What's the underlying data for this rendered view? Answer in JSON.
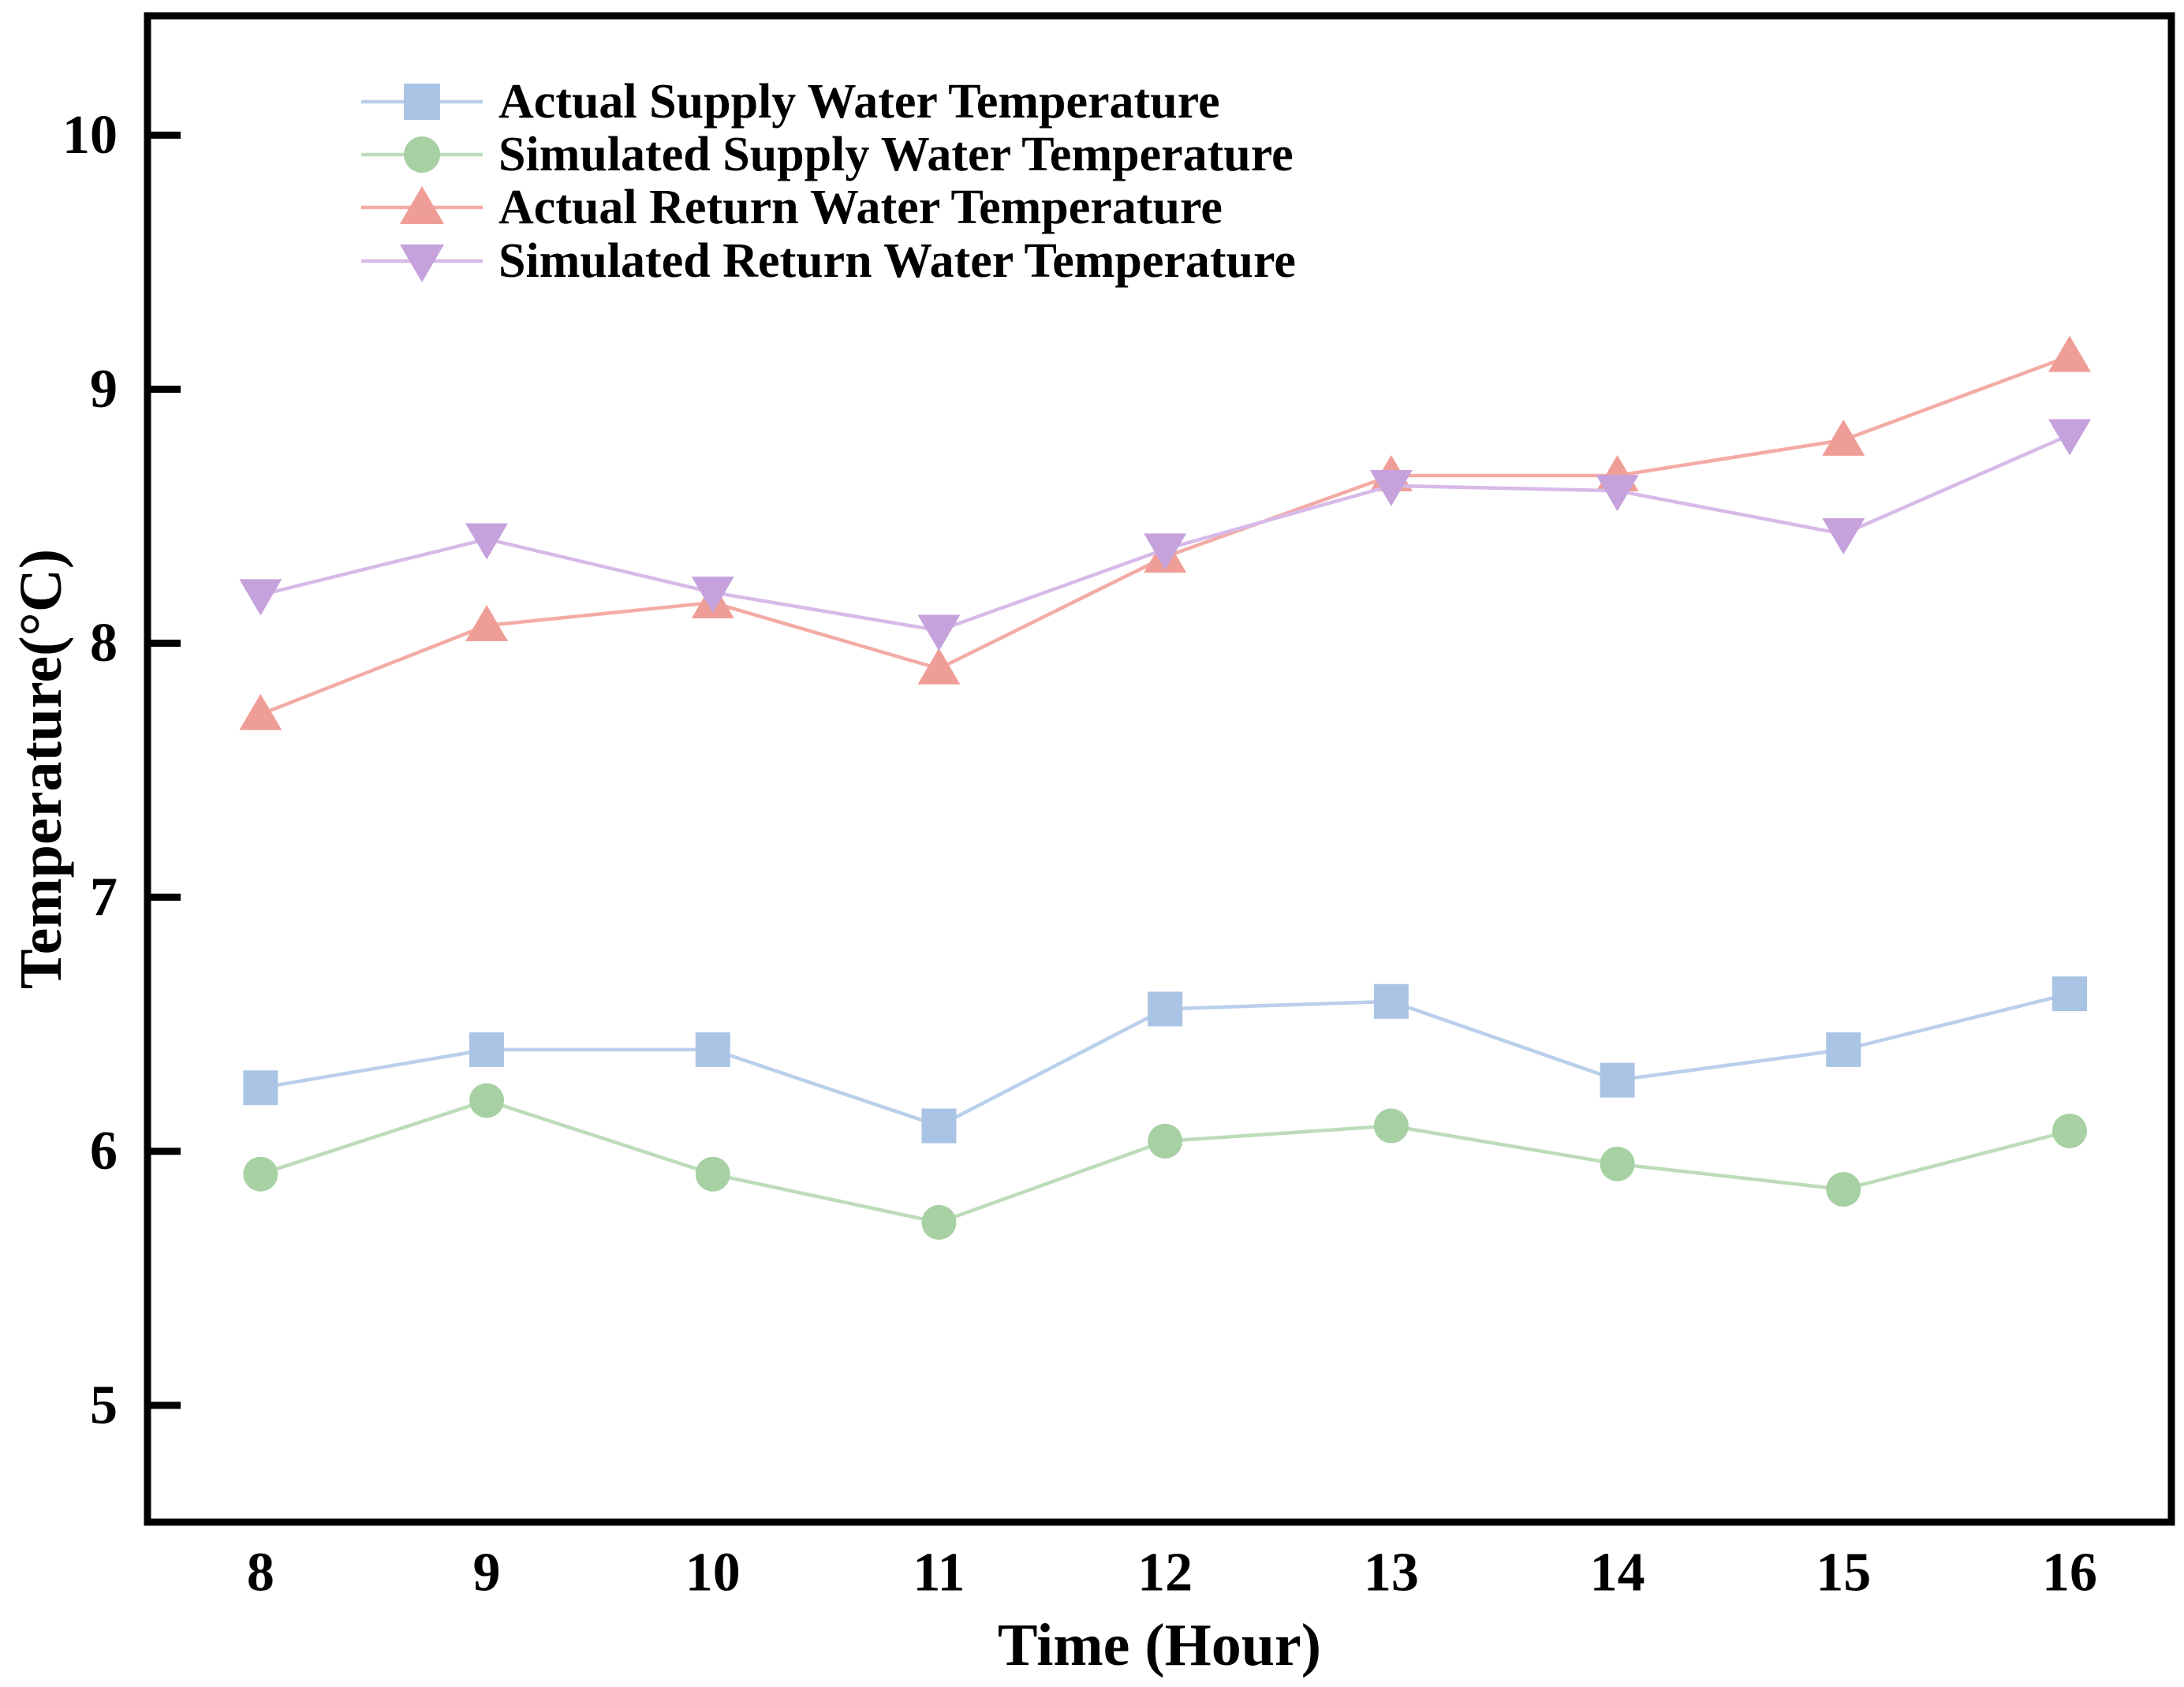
{
  "figure": {
    "background": "#ffffff",
    "axis_color": "#000000",
    "text_color": "#000000"
  },
  "chart_data": {
    "type": "line",
    "title": "",
    "xlabel": "Time (Hour)",
    "ylabel": "Temperature(°C)",
    "x": [
      8,
      9,
      10,
      11,
      12,
      13,
      14,
      15,
      16
    ],
    "x_tick_labels": [
      "8",
      "9",
      "10",
      "11",
      "12",
      "13",
      "14",
      "15",
      "16"
    ],
    "y_ticks": [
      5,
      6,
      7,
      8,
      9,
      10
    ],
    "y_tick_labels": [
      "5",
      "6",
      "7",
      "8",
      "9",
      "10"
    ],
    "xlim": [
      7.5,
      16.45
    ],
    "ylim": [
      4.54,
      10.47
    ],
    "grid": false,
    "legend_position": "upper-left-inside",
    "series": [
      {
        "name": "Actual Supply Water Temperature",
        "marker": "square",
        "marker_color": "#aac4e5",
        "line_color": "#b9cfeb",
        "values": [
          6.25,
          6.4,
          6.4,
          6.1,
          6.56,
          6.59,
          6.28,
          6.4,
          6.62
        ]
      },
      {
        "name": "Simulated Supply Water Temperature",
        "marker": "circle",
        "marker_color": "#a7d0a3",
        "line_color": "#bddcba",
        "values": [
          5.91,
          6.2,
          5.91,
          5.72,
          6.04,
          6.1,
          5.95,
          5.85,
          6.08
        ]
      },
      {
        "name": "Actual Return Water Temperature",
        "marker": "triangle-up",
        "marker_color": "#ef9e97",
        "line_color": "#f3aba5",
        "values": [
          7.72,
          8.07,
          8.16,
          7.9,
          8.34,
          8.66,
          8.66,
          8.8,
          9.13
        ]
      },
      {
        "name": "Simulated Return Water Temperature",
        "marker": "triangle-down",
        "marker_color": "#c6a2dc",
        "line_color": "#d7bae8",
        "values": [
          8.19,
          8.41,
          8.2,
          8.05,
          8.37,
          8.62,
          8.6,
          8.43,
          8.82
        ]
      }
    ]
  }
}
